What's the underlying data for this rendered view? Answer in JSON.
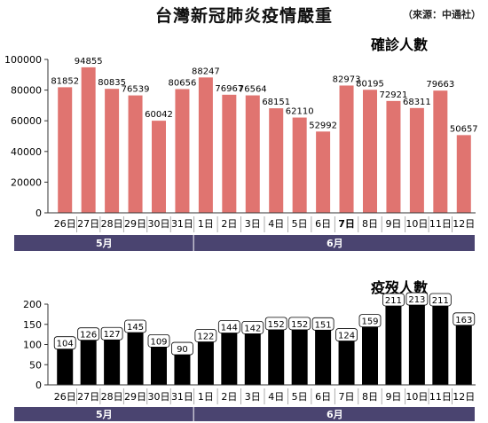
{
  "title": "台灣新冠肺炎疫情嚴重",
  "source": "（來源：中通社）",
  "colors": {
    "confirmed_bar": "#e07470",
    "vaccine_bar": "#000000",
    "axis": "#333333",
    "month_band": "#4a4470"
  },
  "chart_data": [
    {
      "type": "bar",
      "title": "確診人數",
      "categories": [
        "26日",
        "27日",
        "28日",
        "29日",
        "30日",
        "31日",
        "1日",
        "2日",
        "3日",
        "4日",
        "5日",
        "6日",
        "7日",
        "8日",
        "9日",
        "10日",
        "11日",
        "12日"
      ],
      "values": [
        81852,
        94855,
        80835,
        76539,
        60042,
        80656,
        88247,
        76967,
        76564,
        68151,
        62110,
        52992,
        82973,
        80195,
        72921,
        68311,
        79663,
        50657
      ],
      "yticks": [
        0,
        20000,
        40000,
        60000,
        80000,
        100000
      ],
      "ylim": [
        0,
        100000
      ],
      "bold_categories": [
        "7日"
      ],
      "month_groups": [
        {
          "label": "5月",
          "start_index": 0,
          "end_index": 5
        },
        {
          "label": "6月",
          "start_index": 6,
          "end_index": 17
        }
      ]
    },
    {
      "type": "bar",
      "title": "疫歿人數",
      "categories": [
        "26日",
        "27日",
        "28日",
        "29日",
        "30日",
        "31日",
        "1日",
        "2日",
        "3日",
        "4日",
        "5日",
        "6日",
        "7日",
        "8日",
        "9日",
        "10日",
        "11日",
        "12日"
      ],
      "values": [
        104,
        126,
        127,
        145,
        109,
        90,
        122,
        144,
        142,
        152,
        152,
        151,
        124,
        159,
        211,
        213,
        211,
        163
      ],
      "yticks": [
        0,
        50,
        100,
        150,
        200
      ],
      "ylim": [
        0,
        200
      ],
      "month_groups": [
        {
          "label": "5月",
          "start_index": 0,
          "end_index": 5
        },
        {
          "label": "6月",
          "start_index": 6,
          "end_index": 17
        }
      ]
    }
  ]
}
